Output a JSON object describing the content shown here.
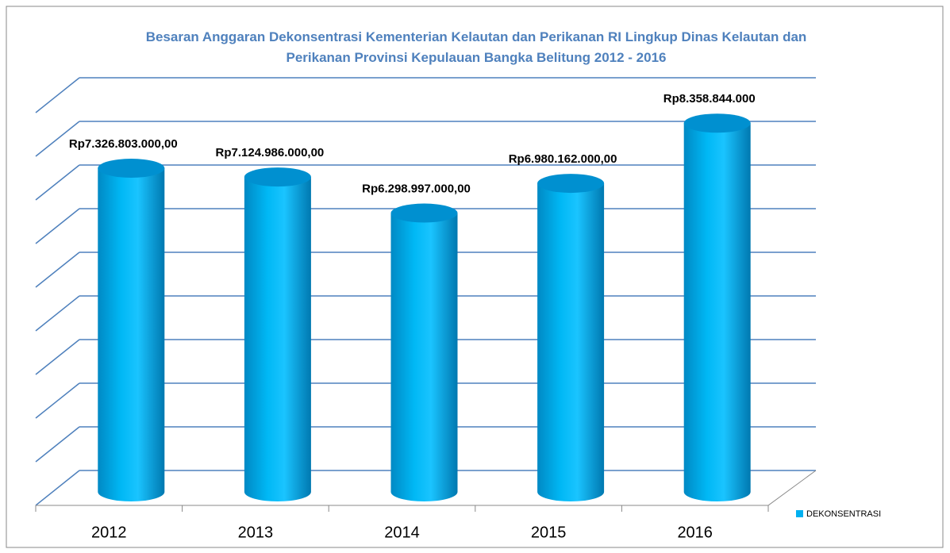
{
  "chart_data": {
    "type": "bar3d",
    "title": "Besaran Anggaran Dekonsentrasi Kementerian Kelautan dan Perikanan RI Lingkup Dinas Kelautan dan Perikanan Provinsi Kepulauan Bangka Belitung 2012 - 2016",
    "categories": [
      "2012",
      "2013",
      "2014",
      "2015",
      "2016"
    ],
    "series": [
      {
        "name": "DEKONSENTRASI",
        "color": "#00b0f0",
        "values": [
          7326803000,
          7124986000,
          6298997000,
          6980162000,
          8358844000
        ],
        "value_labels": [
          "Rp7.326.803.000,00",
          "Rp7.124.986.000,00",
          "Rp6.298.997.000,00",
          "Rp6.980.162.000,00",
          "Rp8.358.844.000"
        ]
      }
    ],
    "ylim": [
      0,
      9000000000
    ],
    "yticks": [
      0,
      1000000000,
      2000000000,
      3000000000,
      4000000000,
      5000000000,
      6000000000,
      7000000000,
      8000000000,
      9000000000
    ],
    "grid": true,
    "legend": "right"
  }
}
